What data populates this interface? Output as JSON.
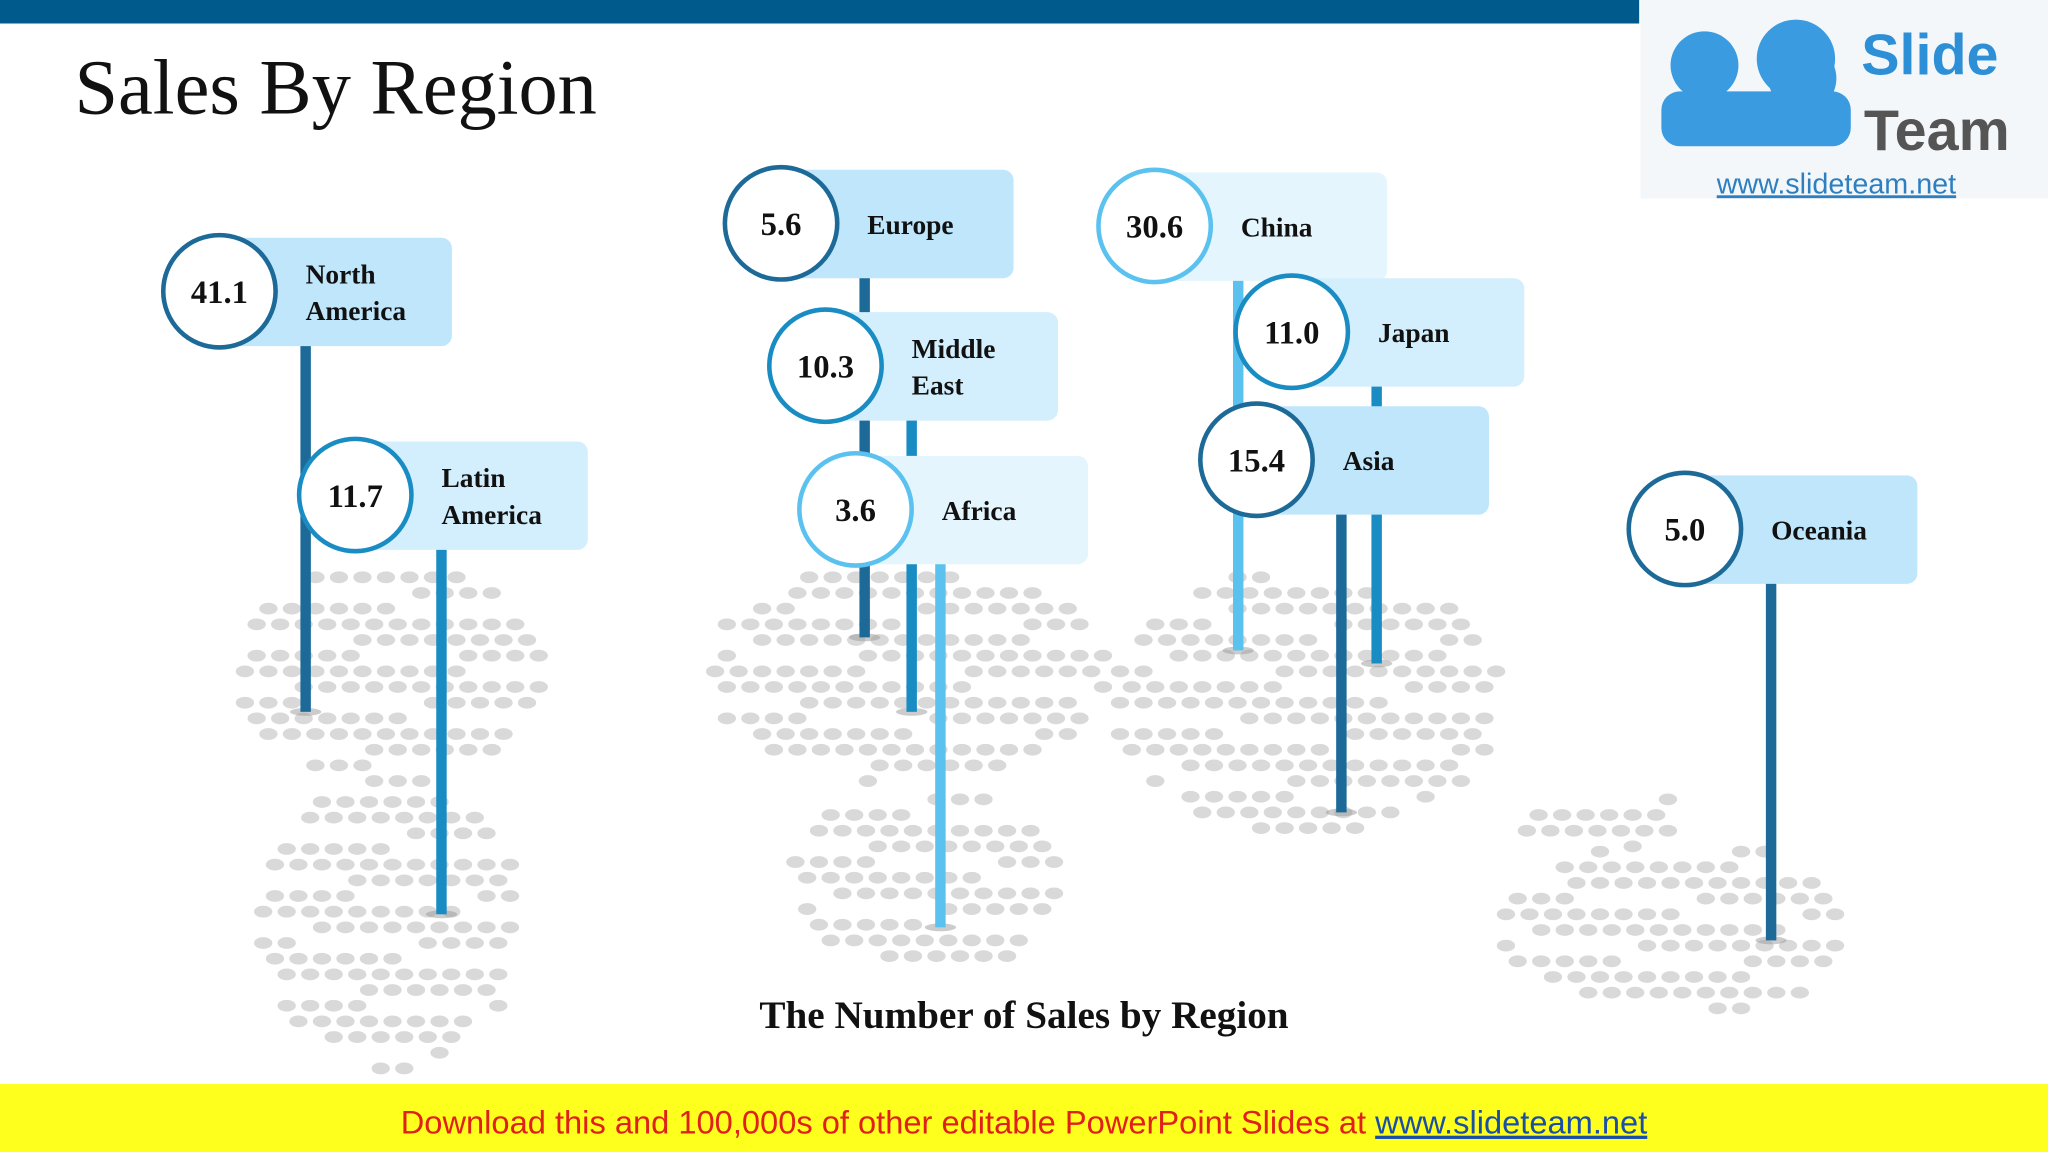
{
  "header": {
    "title": "Sales By Region"
  },
  "logo": {
    "word1": "Slide",
    "word2": "Team",
    "url": "www.slideteam.net"
  },
  "pins": [
    {
      "value": "41.1",
      "label_lines": [
        "North",
        "America"
      ]
    },
    {
      "value": "11.7",
      "label_lines": [
        "Latin",
        "America"
      ]
    },
    {
      "value": "5.6",
      "label_lines": [
        "Europe"
      ]
    },
    {
      "value": "10.3",
      "label_lines": [
        "Middle",
        "East"
      ]
    },
    {
      "value": "3.6",
      "label_lines": [
        "Africa"
      ]
    },
    {
      "value": "30.6",
      "label_lines": [
        "China"
      ]
    },
    {
      "value": "11.0",
      "label_lines": [
        "Japan"
      ]
    },
    {
      "value": "15.4",
      "label_lines": [
        "Asia"
      ]
    },
    {
      "value": "5.0",
      "label_lines": [
        "Oceania"
      ]
    }
  ],
  "caption": "The Number of Sales by Region",
  "footer": {
    "text": "Download this and 100,000s of other editable PowerPoint Slides at ",
    "link": "www.slideteam.net"
  }
}
